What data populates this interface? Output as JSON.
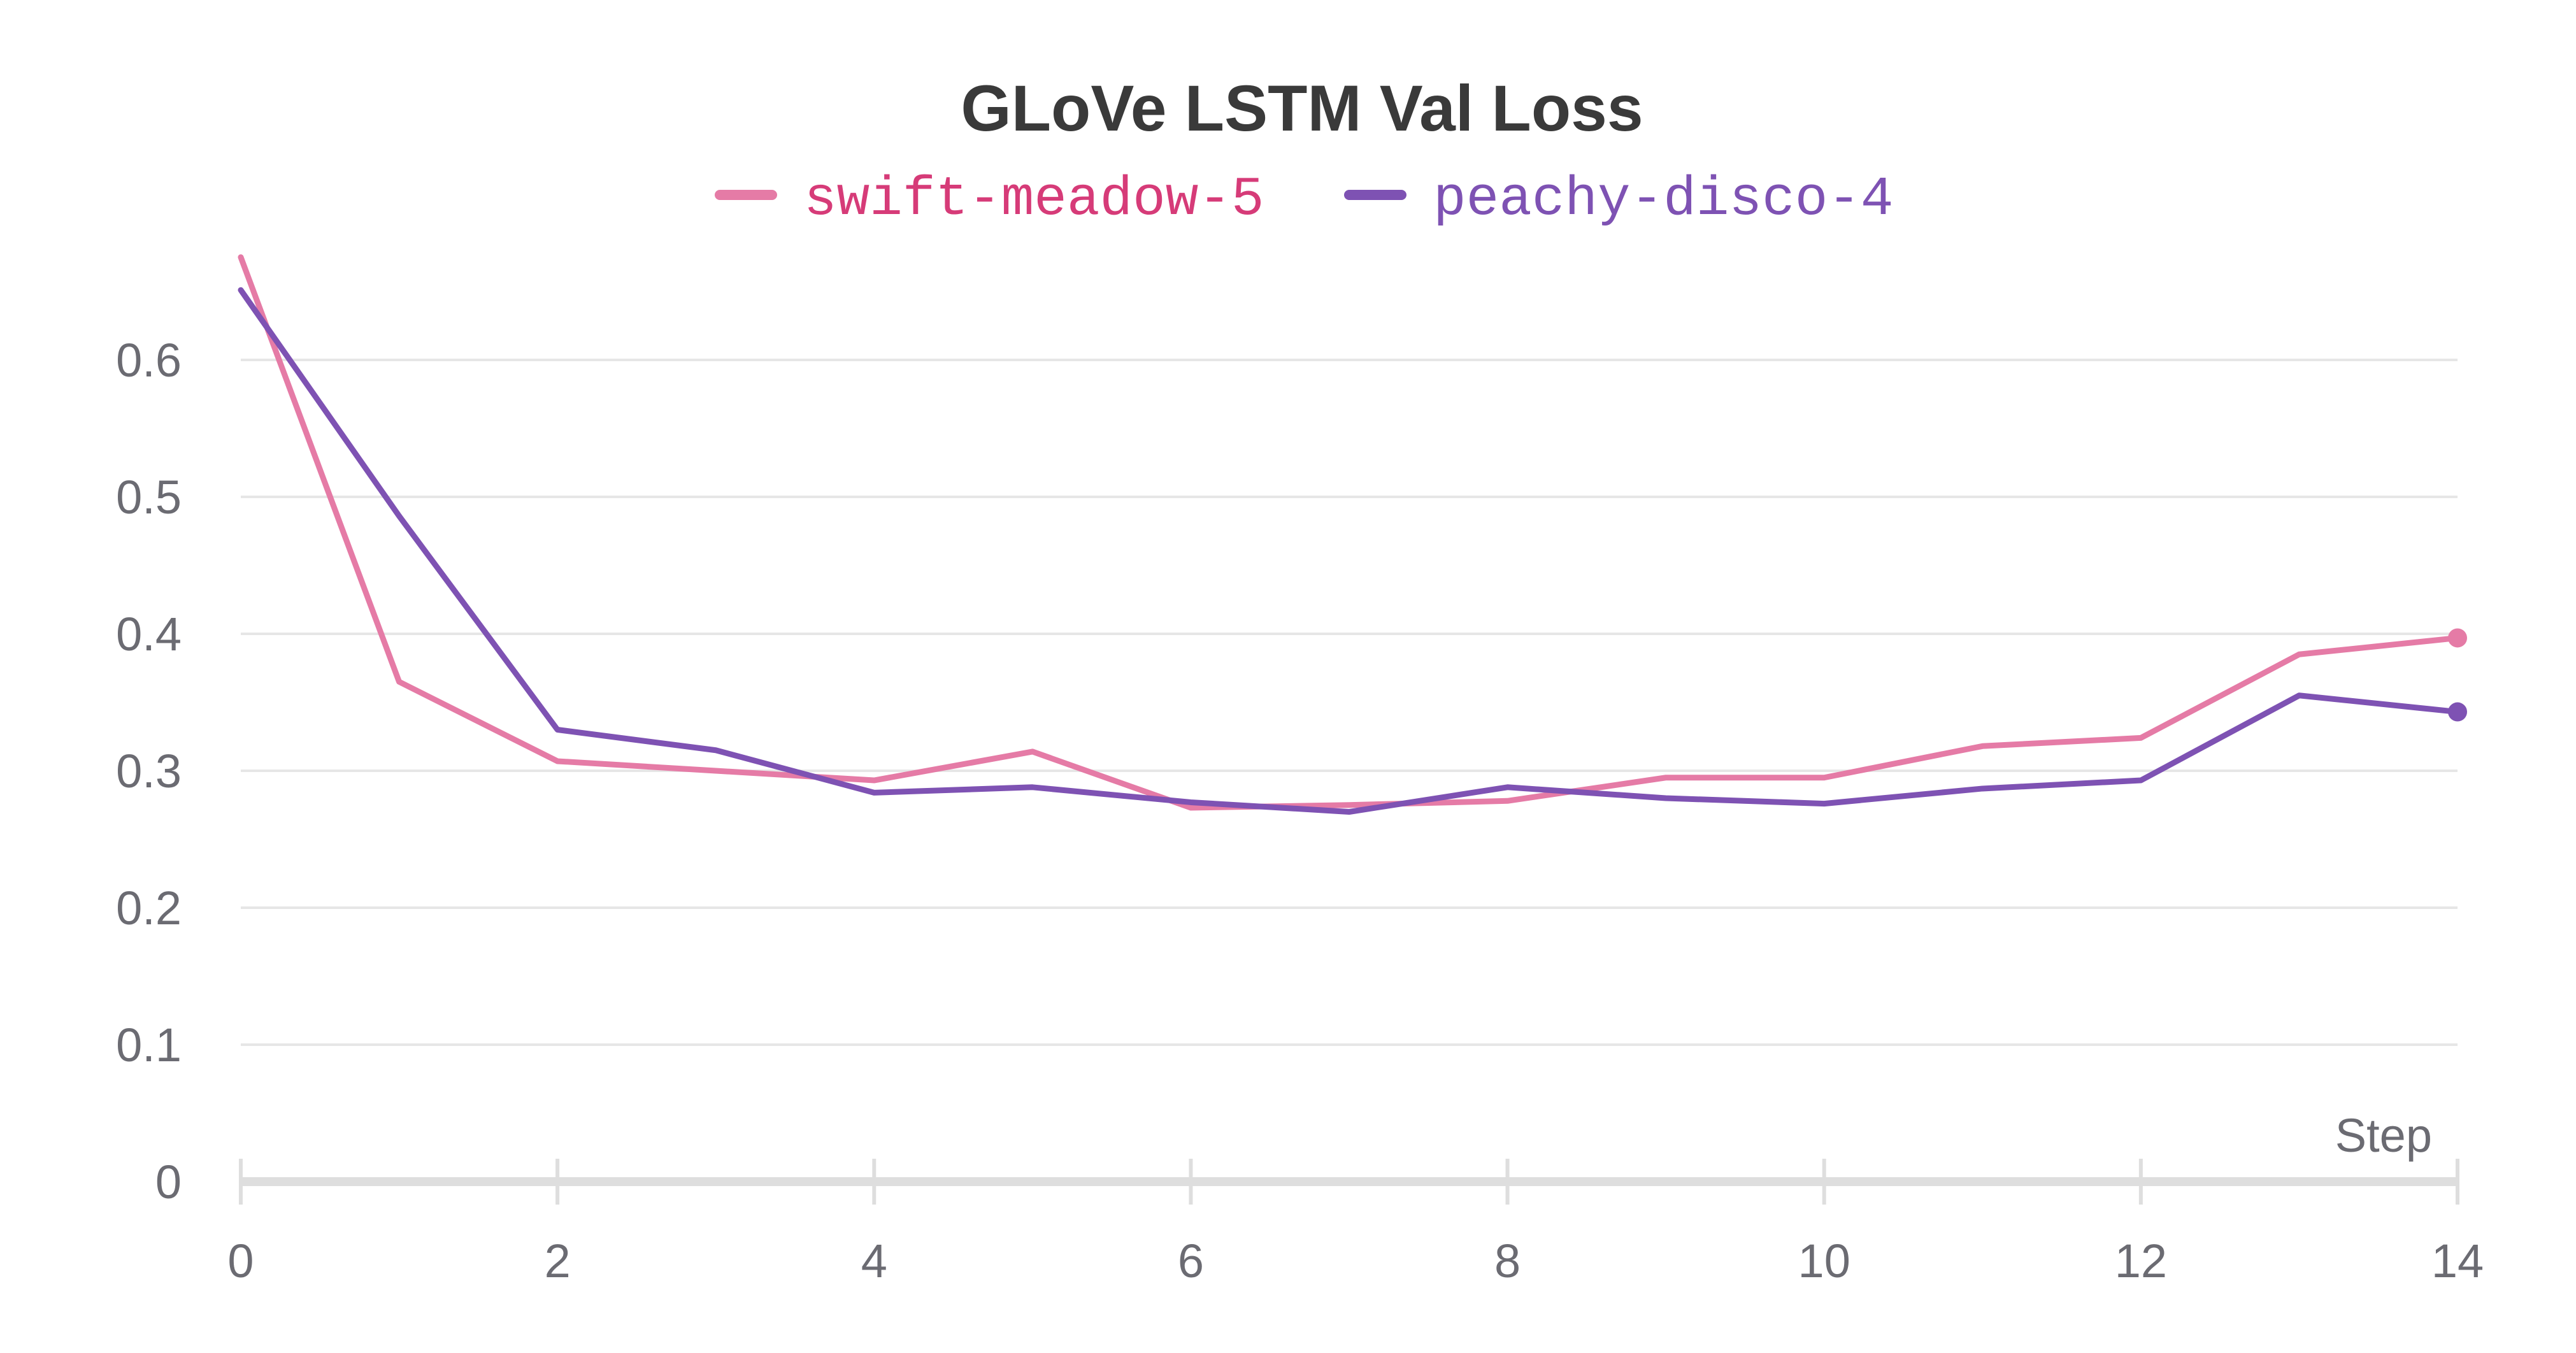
{
  "chart_data": {
    "type": "line",
    "title": "GLoVe LSTM Val Loss",
    "xlabel": "Step",
    "ylabel": "",
    "xlim": [
      0,
      14
    ],
    "ylim": [
      0,
      0.68
    ],
    "x_ticks": [
      "0",
      "2",
      "4",
      "6",
      "8",
      "10",
      "12",
      "14"
    ],
    "x_tick_values": [
      0,
      2,
      4,
      6,
      8,
      10,
      12,
      14
    ],
    "y_ticks": [
      "0",
      "0.1",
      "0.2",
      "0.3",
      "0.4",
      "0.5",
      "0.6"
    ],
    "y_tick_values": [
      0,
      0.1,
      0.2,
      0.3,
      0.4,
      0.5,
      0.6
    ],
    "grid": true,
    "legend_position": "top-center",
    "x": [
      0,
      1,
      2,
      3,
      4,
      5,
      6,
      7,
      8,
      9,
      10,
      11,
      12,
      13,
      14
    ],
    "series": [
      {
        "name": "swift-meadow-5",
        "color": "#e57ba6",
        "label_color": "#d63b78",
        "values": [
          0.675,
          0.365,
          0.307,
          0.3,
          0.293,
          0.314,
          0.273,
          0.275,
          0.278,
          0.295,
          0.295,
          0.318,
          0.324,
          0.385,
          0.397
        ]
      },
      {
        "name": "peachy-disco-4",
        "color": "#7e52b3",
        "label_color": "#7e52b3",
        "values": [
          0.651,
          0.486,
          0.33,
          0.315,
          0.284,
          0.288,
          0.277,
          0.27,
          0.288,
          0.28,
          0.276,
          0.287,
          0.293,
          0.355,
          0.343
        ]
      }
    ]
  }
}
